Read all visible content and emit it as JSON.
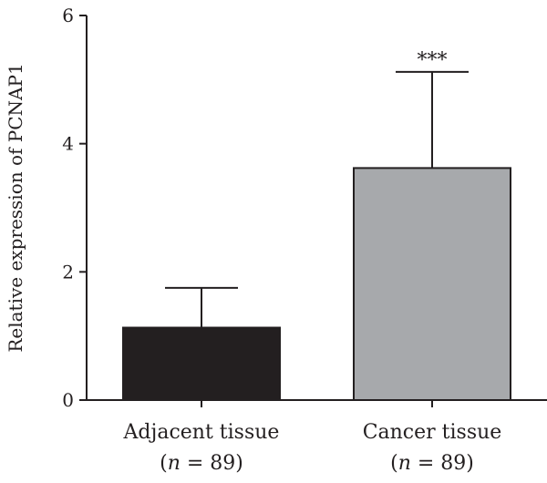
{
  "chart_data": {
    "type": "bar",
    "title": "",
    "xlabel": "",
    "ylabel": "Relative expression of PCNAP1",
    "ylim": [
      0,
      6
    ],
    "yticks": [
      "0",
      "2",
      "4",
      "6"
    ],
    "grid": false,
    "categories": [
      "Adjacent tissue",
      "Cancer tissue"
    ],
    "sample_size_labels": [
      {
        "prefix": "(",
        "var": "n",
        "rest": " = 89)"
      },
      {
        "prefix": "(",
        "var": "n",
        "rest": " = 89)"
      }
    ],
    "values": [
      1.13,
      3.62
    ],
    "error_upper": [
      1.75,
      5.12
    ],
    "bar_colors": [
      "#231f20",
      "#a7a9ac"
    ],
    "annotations": [
      {
        "category": "Cancer tissue",
        "text": "***"
      }
    ]
  }
}
